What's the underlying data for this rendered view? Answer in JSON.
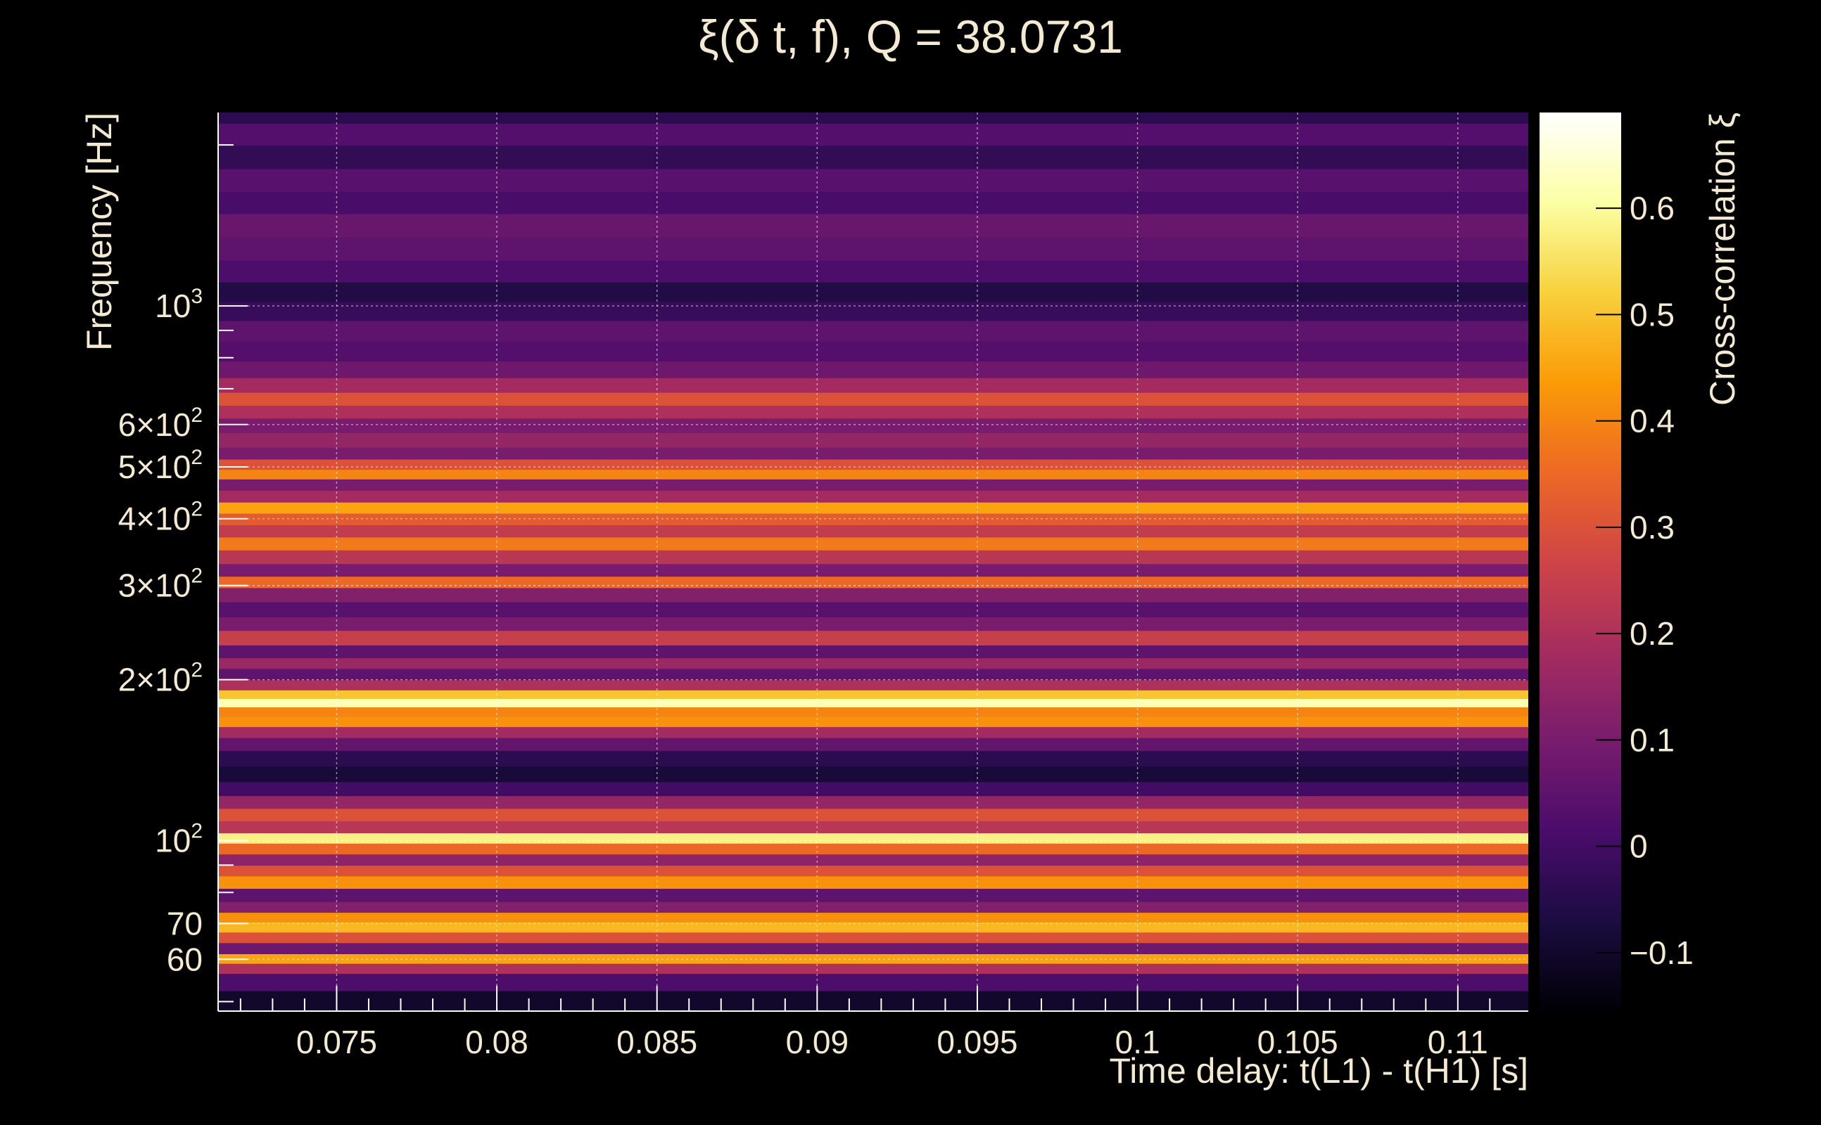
{
  "chart_data": {
    "type": "heatmap",
    "title": "ξ(δ t, f), Q = 38.0731",
    "xlabel": "Time delay: t(L1) - t(H1) [s]",
    "ylabel": "Frequency [Hz]",
    "colorbar_label": "Cross-correlation ξ",
    "xlim": [
      0.0713,
      0.1122
    ],
    "ylim": [
      48,
      2300
    ],
    "y_scale": "log",
    "grid": true,
    "colormap": "inferno",
    "colors": {
      "background": "#000000",
      "text": "#f4ead2"
    },
    "x_ticks": [
      {
        "value": 0.075,
        "label": "0.075"
      },
      {
        "value": 0.08,
        "label": "0.08"
      },
      {
        "value": 0.085,
        "label": "0.085"
      },
      {
        "value": 0.09,
        "label": "0.09"
      },
      {
        "value": 0.095,
        "label": "0.095"
      },
      {
        "value": 0.1,
        "label": "0.1"
      },
      {
        "value": 0.105,
        "label": "0.105"
      },
      {
        "value": 0.11,
        "label": "0.11"
      }
    ],
    "y_ticks": [
      {
        "value": 60,
        "label": "60",
        "pre": "",
        "sup": ""
      },
      {
        "value": 70,
        "label": "70",
        "pre": "",
        "sup": ""
      },
      {
        "value": 100,
        "label": "10",
        "pre": "",
        "sup": "2"
      },
      {
        "value": 200,
        "label": "2×10",
        "pre": "2",
        "sup": "2"
      },
      {
        "value": 300,
        "label": "3×10",
        "pre": "3",
        "sup": "2"
      },
      {
        "value": 400,
        "label": "4×10",
        "pre": "4",
        "sup": "2"
      },
      {
        "value": 500,
        "label": "5×10",
        "pre": "5",
        "sup": "2"
      },
      {
        "value": 600,
        "label": "6×10",
        "pre": "6",
        "sup": "2"
      },
      {
        "value": 1000,
        "label": "10",
        "pre": "",
        "sup": "3"
      }
    ],
    "colorbar_range": [
      -0.155,
      0.69
    ],
    "colorbar_ticks": [
      {
        "value": -0.1,
        "label": "−0.1"
      },
      {
        "value": 0,
        "label": "0"
      },
      {
        "value": 0.1,
        "label": "0.1"
      },
      {
        "value": 0.2,
        "label": "0.2"
      },
      {
        "value": 0.3,
        "label": "0.3"
      },
      {
        "value": 0.4,
        "label": "0.4"
      },
      {
        "value": 0.5,
        "label": "0.5"
      },
      {
        "value": 0.6,
        "label": "0.6"
      }
    ],
    "bands": [
      {
        "f": 50,
        "v": -0.1
      },
      {
        "f": 55,
        "v": 0.02
      },
      {
        "f": 58,
        "v": 0.2
      },
      {
        "f": 60,
        "v": 0.45
      },
      {
        "f": 63,
        "v": 0.08
      },
      {
        "f": 66,
        "v": 0.3
      },
      {
        "f": 69,
        "v": 0.48
      },
      {
        "f": 72,
        "v": 0.42
      },
      {
        "f": 75,
        "v": 0.12
      },
      {
        "f": 79,
        "v": 0.05
      },
      {
        "f": 84,
        "v": 0.42
      },
      {
        "f": 88,
        "v": 0.3
      },
      {
        "f": 92,
        "v": 0.14
      },
      {
        "f": 97,
        "v": 0.35
      },
      {
        "f": 101,
        "v": 0.58
      },
      {
        "f": 106,
        "v": 0.22
      },
      {
        "f": 112,
        "v": 0.3
      },
      {
        "f": 118,
        "v": 0.15
      },
      {
        "f": 125,
        "v": 0.0
      },
      {
        "f": 133,
        "v": -0.08
      },
      {
        "f": 143,
        "v": -0.04
      },
      {
        "f": 152,
        "v": 0.06
      },
      {
        "f": 160,
        "v": 0.18
      },
      {
        "f": 167,
        "v": 0.42
      },
      {
        "f": 175,
        "v": 0.4
      },
      {
        "f": 181,
        "v": 0.62
      },
      {
        "f": 188,
        "v": 0.5
      },
      {
        "f": 195,
        "v": 0.2
      },
      {
        "f": 205,
        "v": 0.05
      },
      {
        "f": 215,
        "v": 0.16
      },
      {
        "f": 225,
        "v": 0.05
      },
      {
        "f": 240,
        "v": 0.25
      },
      {
        "f": 255,
        "v": 0.1
      },
      {
        "f": 270,
        "v": 0.04
      },
      {
        "f": 290,
        "v": 0.12
      },
      {
        "f": 305,
        "v": 0.35
      },
      {
        "f": 320,
        "v": 0.1
      },
      {
        "f": 340,
        "v": 0.22
      },
      {
        "f": 360,
        "v": 0.38
      },
      {
        "f": 380,
        "v": 0.24
      },
      {
        "f": 400,
        "v": 0.32
      },
      {
        "f": 420,
        "v": 0.45
      },
      {
        "f": 440,
        "v": 0.18
      },
      {
        "f": 465,
        "v": 0.1
      },
      {
        "f": 485,
        "v": 0.4
      },
      {
        "f": 505,
        "v": 0.3
      },
      {
        "f": 530,
        "v": 0.1
      },
      {
        "f": 560,
        "v": 0.15
      },
      {
        "f": 600,
        "v": 0.1
      },
      {
        "f": 635,
        "v": 0.2
      },
      {
        "f": 670,
        "v": 0.3
      },
      {
        "f": 710,
        "v": 0.18
      },
      {
        "f": 760,
        "v": 0.08
      },
      {
        "f": 820,
        "v": 0.03
      },
      {
        "f": 900,
        "v": 0.05
      },
      {
        "f": 980,
        "v": -0.02
      },
      {
        "f": 1060,
        "v": -0.06
      },
      {
        "f": 1160,
        "v": 0.02
      },
      {
        "f": 1280,
        "v": 0.05
      },
      {
        "f": 1420,
        "v": 0.07
      },
      {
        "f": 1560,
        "v": 0.01
      },
      {
        "f": 1720,
        "v": 0.04
      },
      {
        "f": 1900,
        "v": -0.03
      },
      {
        "f": 2100,
        "v": 0.03
      },
      {
        "f": 2300,
        "v": -0.04
      }
    ]
  }
}
